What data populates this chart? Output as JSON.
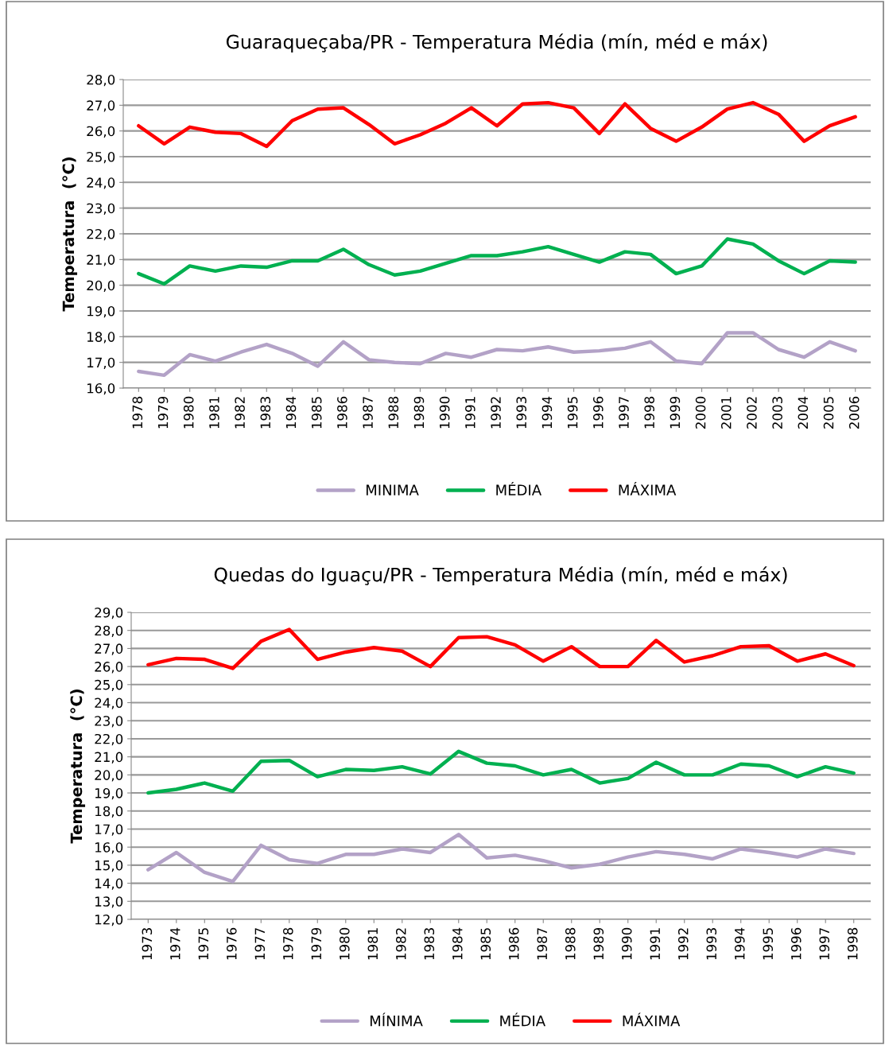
{
  "chart_data": [
    {
      "type": "line",
      "title": "Guaraqueçaba/PR - Temperatura Média (mín, méd e máx)",
      "ylabel": "Temperatura  (°C)",
      "categories": [
        "1978",
        "1979",
        "1980",
        "1981",
        "1982",
        "1983",
        "1984",
        "1985",
        "1986",
        "1987",
        "1988",
        "1989",
        "1990",
        "1991",
        "1992",
        "1993",
        "1994",
        "1995",
        "1996",
        "1997",
        "1998",
        "1999",
        "2000",
        "2001",
        "2002",
        "2003",
        "2004",
        "2005",
        "2006"
      ],
      "series": [
        {
          "name": "MINIMA",
          "color": "#b3a2c7",
          "values": [
            16.65,
            16.5,
            17.3,
            17.05,
            17.4,
            17.7,
            17.35,
            16.85,
            17.8,
            17.1,
            17.0,
            16.95,
            17.35,
            17.2,
            17.5,
            17.45,
            17.6,
            17.4,
            17.45,
            17.55,
            17.8,
            17.05,
            16.95,
            18.15,
            18.15,
            17.5,
            17.2,
            17.8,
            17.45
          ]
        },
        {
          "name": "MÉDIA",
          "color": "#00b050",
          "values": [
            20.45,
            20.05,
            20.75,
            20.55,
            20.75,
            20.7,
            20.95,
            20.95,
            21.4,
            20.8,
            20.4,
            20.55,
            20.85,
            21.15,
            21.15,
            21.3,
            21.5,
            21.2,
            20.9,
            21.3,
            21.2,
            20.45,
            20.75,
            21.8,
            21.6,
            20.95,
            20.45,
            20.95,
            20.9
          ]
        },
        {
          "name": "MÁXIMA",
          "color": "#ff0000",
          "values": [
            26.2,
            25.5,
            26.15,
            25.95,
            25.9,
            25.4,
            26.4,
            26.85,
            26.9,
            26.25,
            25.5,
            25.85,
            26.3,
            26.9,
            26.2,
            27.05,
            27.1,
            26.9,
            25.9,
            27.05,
            26.1,
            25.6,
            26.15,
            26.85,
            27.1,
            26.65,
            25.6,
            26.2,
            26.55
          ]
        }
      ],
      "ylim": [
        16,
        28
      ],
      "yticks": [
        {
          "value": 16,
          "label": "16,0"
        },
        {
          "value": 17,
          "label": "17,0"
        },
        {
          "value": 18,
          "label": "18,0"
        },
        {
          "value": 19,
          "label": "19,0"
        },
        {
          "value": 20,
          "label": "20,0"
        },
        {
          "value": 21,
          "label": "21,0"
        },
        {
          "value": 22,
          "label": "22,0"
        },
        {
          "value": 23,
          "label": "23,0"
        },
        {
          "value": 24,
          "label": "24,0"
        },
        {
          "value": 25,
          "label": "25,0"
        },
        {
          "value": 26,
          "label": "26,0"
        },
        {
          "value": 27,
          "label": "27,0"
        },
        {
          "value": 28,
          "label": "28,0"
        }
      ],
      "grid": "y",
      "legend": "bottom",
      "marker": "none",
      "line_style": "solid"
    },
    {
      "type": "line",
      "title": "Quedas do Iguaçu/PR - Temperatura Média (mín, méd e máx)",
      "ylabel": "Temperatura  (°C)",
      "categories": [
        "1973",
        "1974",
        "1975",
        "1976",
        "1977",
        "1978",
        "1979",
        "1980",
        "1981",
        "1982",
        "1983",
        "1984",
        "1985",
        "1986",
        "1987",
        "1988",
        "1989",
        "1990",
        "1991",
        "1992",
        "1993",
        "1994",
        "1995",
        "1996",
        "1997",
        "1998"
      ],
      "series": [
        {
          "name": "MÍNIMA",
          "color": "#b3a2c7",
          "values": [
            14.75,
            15.7,
            14.6,
            14.1,
            16.1,
            15.3,
            15.1,
            15.6,
            15.6,
            15.9,
            15.7,
            16.7,
            15.4,
            15.55,
            15.25,
            14.85,
            15.05,
            15.45,
            15.75,
            15.6,
            15.35,
            15.9,
            15.7,
            15.45,
            15.9,
            15.65
          ]
        },
        {
          "name": "MÉDIA",
          "color": "#00b050",
          "values": [
            19.0,
            19.2,
            19.55,
            19.1,
            20.75,
            20.8,
            19.9,
            20.3,
            20.25,
            20.45,
            20.05,
            21.3,
            20.65,
            20.5,
            20.0,
            20.3,
            19.55,
            19.8,
            20.7,
            20.0,
            20.0,
            20.6,
            20.5,
            19.9,
            20.45,
            20.1
          ]
        },
        {
          "name": "MÁXIMA",
          "color": "#ff0000",
          "values": [
            26.1,
            26.45,
            26.4,
            25.9,
            27.4,
            28.05,
            26.4,
            26.8,
            27.05,
            26.85,
            26.0,
            27.6,
            27.65,
            27.2,
            26.3,
            27.1,
            26.0,
            26.0,
            27.45,
            26.25,
            26.6,
            27.1,
            27.15,
            26.3,
            26.7,
            26.05
          ]
        }
      ],
      "ylim": [
        12,
        29
      ],
      "yticks": [
        {
          "value": 12,
          "label": "12,0"
        },
        {
          "value": 13,
          "label": "13,0"
        },
        {
          "value": 14,
          "label": "14,0"
        },
        {
          "value": 15,
          "label": "15,0"
        },
        {
          "value": 16,
          "label": "16,0"
        },
        {
          "value": 17,
          "label": "17,0"
        },
        {
          "value": 18,
          "label": "18,0"
        },
        {
          "value": 19,
          "label": "19,0"
        },
        {
          "value": 20,
          "label": "20,0"
        },
        {
          "value": 21,
          "label": "21,0"
        },
        {
          "value": 22,
          "label": "22,0"
        },
        {
          "value": 23,
          "label": "23,0"
        },
        {
          "value": 24,
          "label": "24,0"
        },
        {
          "value": 25,
          "label": "25,0"
        },
        {
          "value": 26,
          "label": "26,0"
        },
        {
          "value": 27,
          "label": "27,0"
        },
        {
          "value": 28,
          "label": "28,0"
        },
        {
          "value": 29,
          "label": "29,0"
        }
      ],
      "grid": "y",
      "legend": "bottom",
      "marker": "none",
      "line_style": "solid"
    }
  ]
}
